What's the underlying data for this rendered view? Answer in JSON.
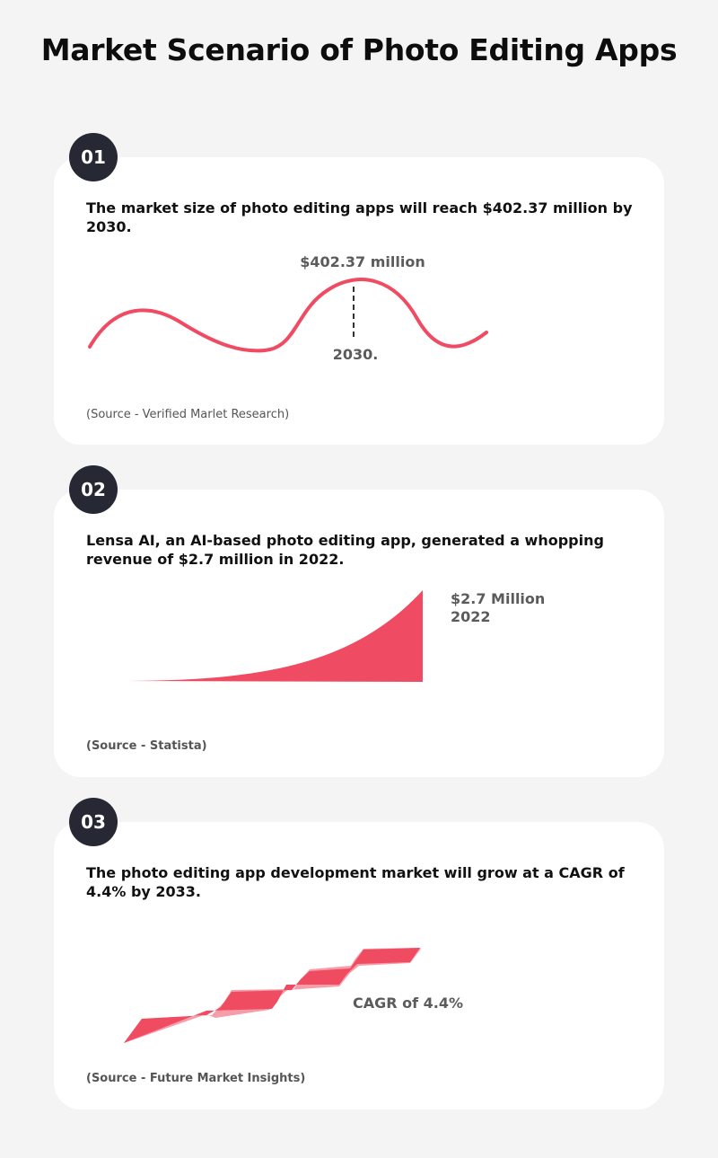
{
  "page": {
    "title": "Market Scenario of Photo Editing Apps",
    "accent_color": "#ef4c63",
    "badge_color": "#262833"
  },
  "cards": [
    {
      "number": "01",
      "statement": "The market size of photo editing apps will reach $402.37 million by 2030.",
      "value_label": "$402.37 million",
      "year_label": "2030.",
      "source": "(Source - Verified Marlet Research)"
    },
    {
      "number": "02",
      "statement": "Lensa AI, an AI-based photo editing app, generated a whopping revenue of $2.7 million in 2022.",
      "value_label": "$2.7 Million",
      "year_label": "2022",
      "source": "(Source - Statista)"
    },
    {
      "number": "03",
      "statement": "The photo editing app development market will grow at a CAGR of 4.4% by 2033.",
      "value_label": "CAGR of 4.4%",
      "source": "(Source - Future Market Insights)"
    }
  ]
}
